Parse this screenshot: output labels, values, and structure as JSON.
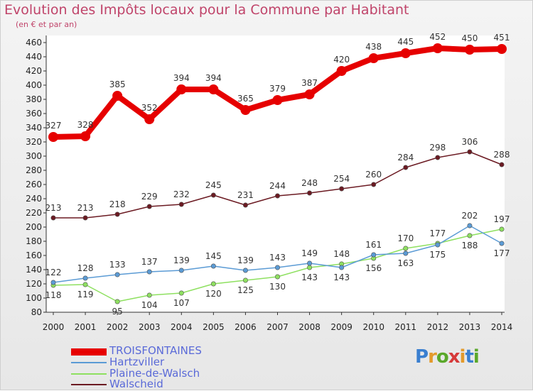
{
  "title": "Evolution des Impôts locaux pour la Commune par Habitant",
  "subtitle": "(en € et par an)",
  "logo": [
    "P",
    "r",
    "o",
    "x",
    "i",
    "t",
    "i"
  ],
  "colors": {
    "TROISFONTAINES": "#e60000",
    "Hartzviller": "#5b9bd5",
    "Plaine-de-Walsch": "#8ee060",
    "Walscheid": "#6b1a22"
  },
  "chart_data": {
    "type": "line",
    "title": "Evolution des Impôts locaux pour la Commune par Habitant",
    "subtitle": "(en € et par an)",
    "x": [
      "2000",
      "2001",
      "2002",
      "2003",
      "2004",
      "2005",
      "2006",
      "2007",
      "2008",
      "2009",
      "2010",
      "2011",
      "2012",
      "2013",
      "2014"
    ],
    "ylim": [
      80,
      460
    ],
    "yticks": [
      80,
      100,
      120,
      140,
      160,
      180,
      200,
      220,
      240,
      260,
      280,
      300,
      320,
      340,
      360,
      380,
      400,
      420,
      440,
      460
    ],
    "grid": false,
    "legend": "bottom-left",
    "series": [
      {
        "name": "TROISFONTAINES",
        "values": [
          327,
          328,
          385,
          352,
          394,
          394,
          365,
          379,
          387,
          420,
          438,
          445,
          452,
          450,
          451
        ],
        "labels": [
          "327",
          "328",
          "385",
          "352",
          "394",
          "394",
          "365",
          "379",
          "387",
          "420",
          "438",
          "445",
          "452",
          "450",
          "451"
        ]
      },
      {
        "name": "Hartzviller",
        "values": [
          122,
          128,
          133,
          137,
          139,
          145,
          139,
          143,
          149,
          143,
          161,
          163,
          175,
          202,
          177
        ],
        "labels": [
          "122",
          "128",
          "133",
          "137",
          "139",
          "145",
          "139",
          "143",
          "149",
          "143",
          "161",
          "163",
          "175",
          "202",
          "177"
        ]
      },
      {
        "name": "Plaine-de-Walsch",
        "values": [
          118,
          119,
          95,
          104,
          107,
          120,
          125,
          130,
          143,
          148,
          156,
          170,
          177,
          188,
          197
        ],
        "labels": [
          "118",
          "119",
          "95",
          "104",
          "107",
          "120",
          "125",
          "130",
          "143",
          "148",
          "156",
          "170",
          "177",
          "188",
          "197"
        ]
      },
      {
        "name": "Walscheid",
        "values": [
          213,
          213,
          218,
          229,
          232,
          245,
          231,
          244,
          248,
          254,
          260,
          284,
          298,
          306,
          288
        ],
        "labels": [
          "213",
          "213",
          "218",
          "229",
          "232",
          "245",
          "231",
          "244",
          "248",
          "254",
          "260",
          "284",
          "298",
          "306",
          "288"
        ]
      }
    ]
  }
}
